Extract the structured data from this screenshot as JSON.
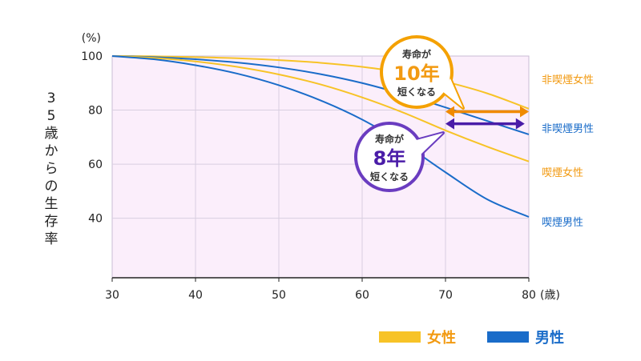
{
  "chart_data": {
    "type": "line",
    "title": "",
    "ylabel": "35歳からの生存率",
    "y_unit": "(%)",
    "x_unit": "(歳)",
    "xlim": [
      30,
      80
    ],
    "ylim": [
      18,
      100
    ],
    "x_ticks": [
      30,
      40,
      50,
      60,
      70,
      80
    ],
    "y_ticks": [
      40,
      60,
      80,
      100
    ],
    "grid": true,
    "legend": "bottom-right",
    "x": [
      30,
      35,
      40,
      45,
      50,
      55,
      60,
      65,
      70,
      75,
      80
    ],
    "series": [
      {
        "name": "非喫煙女性",
        "group": "female",
        "values": [
          100,
          99.9,
          99.6,
          99.2,
          98.5,
          97.5,
          96.0,
          93.8,
          90.5,
          86.2,
          80.5
        ]
      },
      {
        "name": "非喫煙男性",
        "group": "male",
        "values": [
          100,
          99.6,
          98.8,
          97.6,
          95.8,
          93.3,
          90.0,
          85.8,
          81.0,
          76.0,
          71.0
        ]
      },
      {
        "name": "喫煙女性",
        "group": "female",
        "values": [
          100,
          99.3,
          98.0,
          96.0,
          93.2,
          89.5,
          84.7,
          79.0,
          72.5,
          66.5,
          61.0
        ]
      },
      {
        "name": "喫煙男性",
        "group": "male",
        "values": [
          100,
          98.8,
          96.6,
          93.5,
          89.2,
          83.6,
          76.5,
          67.5,
          57.0,
          47.0,
          40.5
        ]
      }
    ],
    "annotations": [
      {
        "line1": "寿命が",
        "number": "10年",
        "line3": "短くなる",
        "group": "female",
        "arrow_x": [
          70,
          80
        ],
        "arrow_y": 80
      },
      {
        "line1": "寿命が",
        "number": "8年",
        "line3": "短くなる",
        "group": "male",
        "arrow_x": [
          70,
          79.5
        ],
        "arrow_y": 72
      }
    ],
    "legend_items": [
      {
        "label": "女性",
        "group": "female"
      },
      {
        "label": "男性",
        "group": "male"
      }
    ]
  },
  "colors": {
    "female": "#f7c327",
    "female_text": "#f29a12",
    "male": "#1a6cc9",
    "female_arrow": "#f08a00",
    "male_arrow": "#4a1ca8",
    "female_bubble_border": "#f4a100",
    "male_bubble_border": "#6a3cc0",
    "plot_bg": "#fbeefb",
    "grid": "#d8cfe0"
  }
}
